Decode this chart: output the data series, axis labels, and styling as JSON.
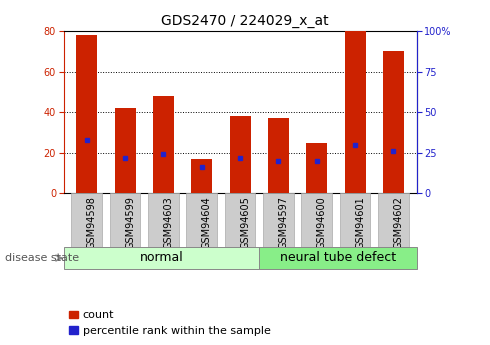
{
  "title": "GDS2470 / 224029_x_at",
  "samples": [
    "GSM94598",
    "GSM94599",
    "GSM94603",
    "GSM94604",
    "GSM94605",
    "GSM94597",
    "GSM94600",
    "GSM94601",
    "GSM94602"
  ],
  "counts": [
    78,
    42,
    48,
    17,
    38,
    37,
    25,
    80,
    70
  ],
  "percentiles": [
    33,
    22,
    24,
    16,
    22,
    20,
    20,
    30,
    26
  ],
  "bar_color": "#cc2200",
  "marker_color": "#2222cc",
  "normal_label": "normal",
  "defect_label": "neural tube defect",
  "disease_state_label": "disease state",
  "legend_count": "count",
  "legend_percentile": "percentile rank within the sample",
  "ylim_left": [
    0,
    80
  ],
  "ylim_right": [
    0,
    100
  ],
  "yticks_left": [
    0,
    20,
    40,
    60,
    80
  ],
  "yticks_right": [
    0,
    25,
    50,
    75,
    100
  ],
  "ytick_labels_right": [
    "0",
    "25",
    "50",
    "75",
    "100%"
  ],
  "bar_width": 0.55,
  "tick_bg_color": "#cccccc",
  "normal_bg": "#ccffcc",
  "defect_bg": "#88ee88",
  "title_fontsize": 10,
  "tick_fontsize": 7,
  "group_fontsize": 9,
  "legend_fontsize": 8
}
